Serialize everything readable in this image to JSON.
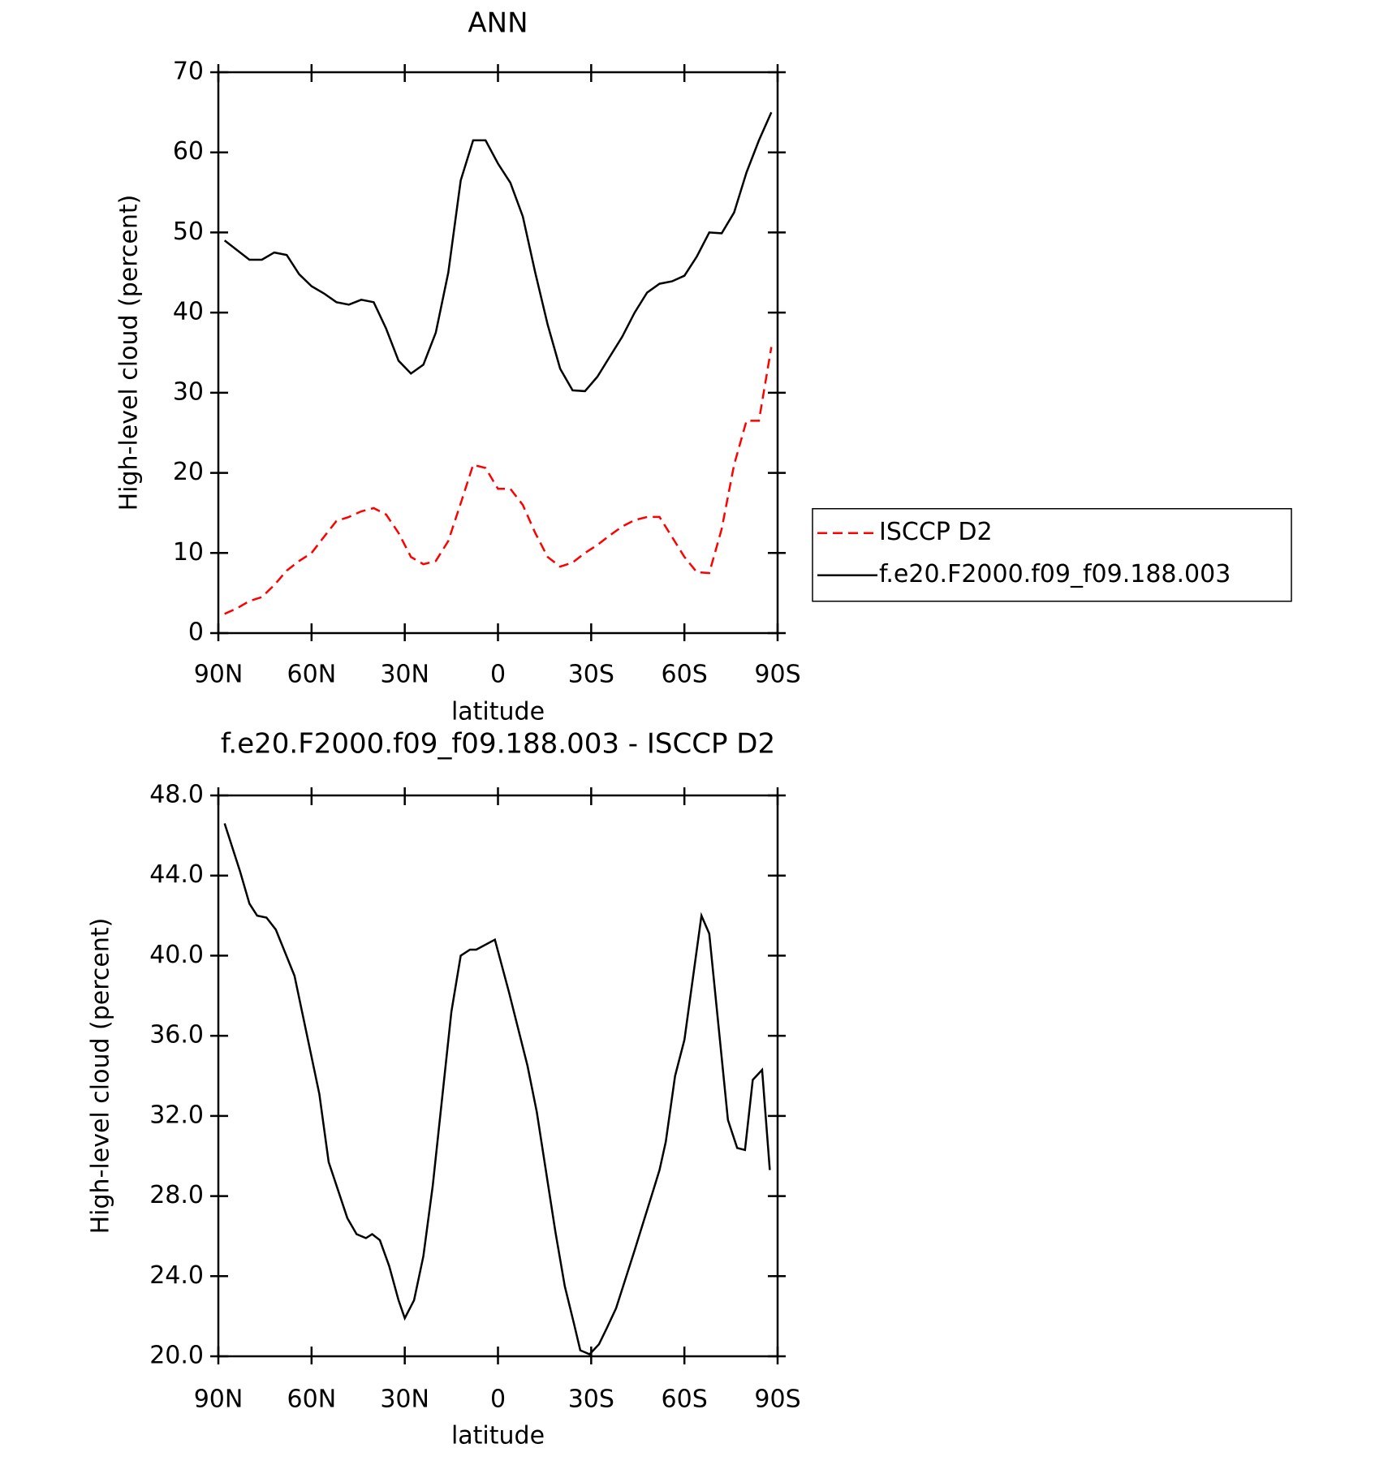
{
  "chart_data": [
    {
      "type": "line",
      "title": "ANN",
      "xlabel": "latitude",
      "ylabel": "High-level cloud (percent)",
      "x": [
        88,
        84,
        80,
        76,
        72,
        68,
        64,
        60,
        56,
        52,
        48,
        44,
        40,
        36,
        32,
        28,
        24,
        20,
        16,
        12,
        8,
        4,
        0,
        -4,
        -8,
        -12,
        -16,
        -20,
        -24,
        -28,
        -32,
        -36,
        -40,
        -44,
        -48,
        -52,
        -56,
        -60,
        -64,
        -68,
        -72,
        -76,
        -80,
        -84,
        -88
      ],
      "series": [
        {
          "name": "ISCCP D2",
          "color": "#ff0000",
          "line_style": "dashed",
          "values": [
            2.4,
            3.1,
            4,
            4.5,
            6,
            7.8,
            9,
            10,
            12,
            14,
            14.5,
            15.2,
            15.6,
            14.8,
            12.5,
            9.5,
            8.6,
            9,
            11.5,
            16.2,
            21,
            20.6,
            18,
            18,
            16,
            12.5,
            9.5,
            8.3,
            8.8,
            10,
            11,
            12.2,
            13.3,
            14.1,
            14.5,
            14.5,
            12,
            9.5,
            7.6,
            7.5,
            13,
            21,
            26.5,
            26.5,
            35.7
          ]
        },
        {
          "name": "f.e20.F2000.f09_f09.188.003",
          "color": "#000000",
          "line_style": "solid",
          "values": [
            49,
            47.8,
            46.6,
            46.6,
            47.5,
            47.2,
            44.8,
            43.3,
            42.4,
            41.3,
            41,
            41.6,
            41.3,
            38,
            34,
            32.4,
            33.5,
            37.5,
            45,
            56.5,
            61.5,
            61.5,
            58.6,
            56.2,
            52,
            45,
            38.5,
            33,
            30.3,
            30.2,
            32,
            34.5,
            37,
            40,
            42.5,
            43.6,
            43.9,
            44.6,
            47,
            50,
            49.9,
            52.5,
            57.5,
            61.5,
            65
          ]
        }
      ],
      "xlim": [
        90,
        -90
      ],
      "xticks": [
        {
          "value": 90,
          "label": "90N"
        },
        {
          "value": 60,
          "label": "60N"
        },
        {
          "value": 30,
          "label": "30N"
        },
        0,
        {
          "value": -30,
          "label": "30S"
        },
        {
          "value": -60,
          "label": "60S"
        },
        {
          "value": -90,
          "label": "90S"
        }
      ],
      "ylim": [
        0,
        70
      ],
      "yticks": [
        0,
        10,
        20,
        30,
        40,
        50,
        60,
        70
      ],
      "legend": "right"
    },
    {
      "type": "line",
      "title": "f.e20.F2000.f09_f09.188.003 - ISCCP D2",
      "xlabel": "latitude",
      "ylabel": "High-level cloud (percent)",
      "x": [
        88,
        83,
        80,
        77.5,
        74.5,
        71.5,
        65.5,
        57.5,
        54.5,
        48.5,
        45.5,
        42.5,
        40.5,
        38,
        35,
        32,
        30,
        27,
        24,
        21,
        15,
        12,
        9,
        7,
        1,
        -3.5,
        -9.5,
        -12.5,
        -18.5,
        -21.5,
        -24.5,
        -26.5,
        -29.5,
        -32.5,
        -35,
        -38,
        -44,
        -50,
        -52,
        -54,
        -57,
        -60,
        -65.5,
        -68,
        -74,
        -77,
        -79.5,
        -82,
        -85,
        -87.5
      ],
      "series": [
        {
          "color": "#000000",
          "line_style": "solid",
          "values": [
            46.6,
            44.2,
            42.6,
            42,
            41.9,
            41.3,
            39,
            33.1,
            29.7,
            26.9,
            26.1,
            25.9,
            26.1,
            25.8,
            24.5,
            22.8,
            21.9,
            22.8,
            25,
            28.5,
            37.2,
            40,
            40.3,
            40.3,
            40.8,
            38.2,
            34.5,
            32.2,
            26.2,
            23.5,
            21.6,
            20.3,
            20.1,
            20.6,
            21.4,
            22.4,
            25.3,
            28.3,
            29.3,
            30.7,
            34,
            35.8,
            42,
            41.1,
            31.8,
            30.4,
            30.3,
            33.8,
            34.3,
            29.3
          ]
        }
      ],
      "xlim": [
        90,
        -90
      ],
      "xticks": [
        {
          "value": 90,
          "label": "90N"
        },
        {
          "value": 60,
          "label": "60N"
        },
        {
          "value": 30,
          "label": "30N"
        },
        0,
        {
          "value": -30,
          "label": "30S"
        },
        {
          "value": -60,
          "label": "60S"
        },
        {
          "value": -90,
          "label": "90S"
        }
      ],
      "ylim": [
        20,
        48
      ],
      "yticks": [
        {
          "value": 20,
          "label": "20.0"
        },
        {
          "value": 24,
          "label": "24.0"
        },
        {
          "value": 28,
          "label": "28.0"
        },
        {
          "value": 32,
          "label": "32.0"
        },
        {
          "value": 36,
          "label": "36.0"
        },
        {
          "value": 40,
          "label": "40.0"
        },
        {
          "value": 44,
          "label": "44.0"
        },
        {
          "value": 48,
          "label": "48.0"
        }
      ]
    }
  ]
}
